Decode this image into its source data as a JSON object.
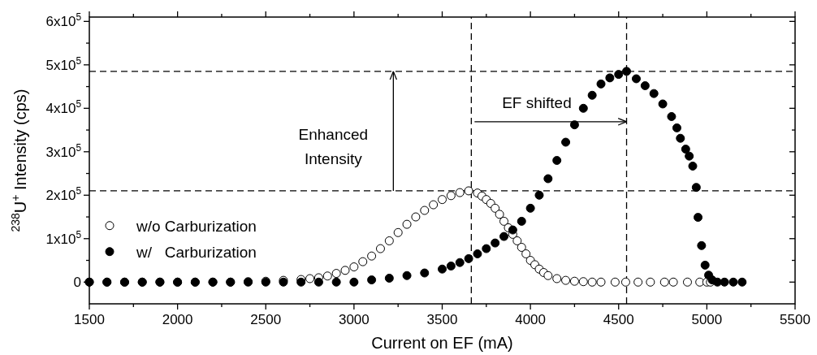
{
  "chart_data": {
    "type": "scatter",
    "xlabel": "Current on EF (mA)",
    "ylabel": "$^{238}$U$^{+}$ Intensity (cps)",
    "xlim": [
      1500,
      5500
    ],
    "ylim": [
      -50000,
      610000
    ],
    "xticks": [
      1500,
      {
        "value": 1750,
        "label": null
      },
      2000,
      {
        "value": 2250,
        "label": null
      },
      2500,
      {
        "value": 2750,
        "label": null
      },
      3000,
      {
        "value": 3250,
        "label": null
      },
      3500,
      {
        "value": 3750,
        "label": null
      },
      4000,
      {
        "value": 4250,
        "label": null
      },
      4500,
      {
        "value": 4750,
        "label": null
      },
      5000,
      {
        "value": 5250,
        "label": null
      },
      5500
    ],
    "yticks": [
      {
        "value": 0,
        "label": "0"
      },
      {
        "value": 50000,
        "label": null
      },
      {
        "value": 100000,
        "label": "1x10$^{5}$"
      },
      {
        "value": 150000,
        "label": null
      },
      {
        "value": 200000,
        "label": "2x10$^{5}$"
      },
      {
        "value": 250000,
        "label": null
      },
      {
        "value": 300000,
        "label": "3x10$^{5}$"
      },
      {
        "value": 350000,
        "label": null
      },
      {
        "value": 400000,
        "label": "4x10$^{5}$"
      },
      {
        "value": 450000,
        "label": null
      },
      {
        "value": 500000,
        "label": "5x10$^{5}$"
      },
      {
        "value": 550000,
        "label": null
      },
      {
        "value": 600000,
        "label": "6x10$^{5}$"
      }
    ],
    "grid": false,
    "legend": "bottom left",
    "marker": "circle",
    "series": [
      {
        "name": "w/o Carburization",
        "color": "#ffffff",
        "x": [
          1500,
          1600,
          1700,
          1800,
          1900,
          2000,
          2100,
          2200,
          2300,
          2400,
          2500,
          2600,
          2700,
          2750,
          2800,
          2850,
          2900,
          2950,
          3000,
          3050,
          3100,
          3150,
          3200,
          3250,
          3300,
          3350,
          3400,
          3450,
          3500,
          3550,
          3600,
          3650,
          3700,
          3725,
          3750,
          3775,
          3800,
          3825,
          3850,
          3875,
          3900,
          3925,
          3950,
          3975,
          4000,
          4025,
          4050,
          4075,
          4100,
          4150,
          4200,
          4250,
          4300,
          4350,
          4400,
          4480,
          4540,
          4610,
          4680,
          4760,
          4810,
          4890,
          4960,
          5000,
          5020
        ],
        "values": [
          0,
          0,
          0,
          0,
          0,
          0,
          0,
          0,
          0,
          1000,
          2000,
          4000,
          6000,
          8000,
          10000,
          14000,
          20000,
          27000,
          35000,
          47000,
          60000,
          77000,
          95000,
          114000,
          133000,
          150000,
          165000,
          178000,
          190000,
          199000,
          206000,
          210000,
          205000,
          198000,
          190000,
          181000,
          170000,
          156000,
          140000,
          125000,
          110000,
          95000,
          80000,
          65000,
          50000,
          40000,
          30000,
          22000,
          15000,
          8000,
          4000,
          2000,
          1000,
          0,
          0,
          0,
          0,
          0,
          0,
          0,
          0,
          0,
          0,
          0,
          0
        ]
      },
      {
        "name": "w/   Carburization",
        "color": "#000000",
        "x": [
          1500,
          1600,
          1700,
          1800,
          1900,
          2000,
          2100,
          2200,
          2300,
          2400,
          2500,
          2600,
          2700,
          2800,
          2900,
          3000,
          3100,
          3200,
          3300,
          3400,
          3500,
          3550,
          3600,
          3650,
          3700,
          3750,
          3800,
          3850,
          3900,
          3950,
          4000,
          4050,
          4100,
          4150,
          4200,
          4250,
          4300,
          4350,
          4400,
          4450,
          4500,
          4545,
          4600,
          4650,
          4700,
          4750,
          4800,
          4830,
          4850,
          4880,
          4900,
          4920,
          4940,
          4950,
          4970,
          4990,
          5010,
          5030,
          5060,
          5100,
          5150,
          5200
        ],
        "values": [
          0,
          0,
          0,
          0,
          0,
          0,
          0,
          0,
          0,
          0,
          0,
          0,
          0,
          0,
          0,
          0,
          5000,
          9000,
          15000,
          21000,
          30000,
          37000,
          45000,
          54000,
          65000,
          77000,
          90000,
          105000,
          120000,
          140000,
          170000,
          200000,
          238000,
          280000,
          322000,
          362000,
          400000,
          430000,
          456000,
          470000,
          478000,
          485000,
          468000,
          452000,
          434000,
          410000,
          381000,
          355000,
          331000,
          306000,
          290000,
          267000,
          218000,
          149000,
          84000,
          39000,
          16000,
          5000,
          0,
          0,
          0,
          0
        ]
      }
    ],
    "ref_lines": [
      {
        "axis": "y",
        "value": 485000,
        "line_style": "dashed",
        "color": "#000000"
      },
      {
        "axis": "y",
        "value": 210000,
        "line_style": "dashed",
        "color": "#000000"
      },
      {
        "axis": "x",
        "value": 3665,
        "line_style": "dashed",
        "color": "#000000"
      },
      {
        "axis": "x",
        "value": 4545,
        "line_style": "dashed",
        "color": "#000000"
      }
    ],
    "annotations": [
      "Enhanced\nIntensity",
      "EF shifted"
    ]
  }
}
